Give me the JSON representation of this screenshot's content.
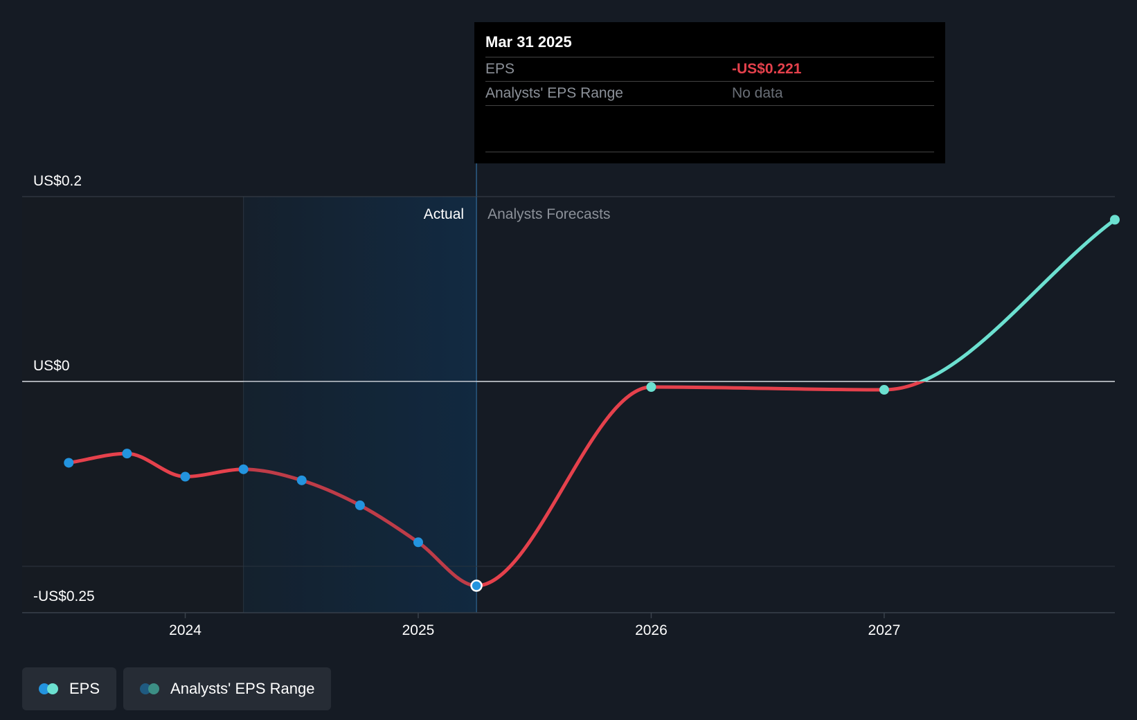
{
  "chart_data": {
    "type": "line",
    "title": "",
    "xlabel": "",
    "ylabel": "",
    "y_axis_labels": [
      "US$0.2",
      "US$0",
      "-US$0.25"
    ],
    "ylim": [
      -0.25,
      0.2
    ],
    "x_ticks": [
      {
        "label": "2024",
        "x": 2024.0
      },
      {
        "label": "2025",
        "x": 2025.0
      },
      {
        "label": "2026",
        "x": 2026.0
      },
      {
        "label": "2027",
        "x": 2027.0
      }
    ],
    "xlim": [
      2023.3,
      2027.99
    ],
    "regions": {
      "actual_label": "Actual",
      "forecast_label": "Analysts Forecasts",
      "actual_start": 2024.25,
      "divider": 2025.25
    },
    "series": [
      {
        "name": "EPS (actual)",
        "points": [
          {
            "x": 2023.5,
            "y": -0.088
          },
          {
            "x": 2023.75,
            "y": -0.078
          },
          {
            "x": 2024.0,
            "y": -0.103
          },
          {
            "x": 2024.25,
            "y": -0.095
          },
          {
            "x": 2024.5,
            "y": -0.107
          },
          {
            "x": 2024.75,
            "y": -0.134
          },
          {
            "x": 2025.0,
            "y": -0.174
          },
          {
            "x": 2025.25,
            "y": -0.221
          }
        ]
      },
      {
        "name": "EPS (forecast)",
        "points": [
          {
            "x": 2025.25,
            "y": -0.221
          },
          {
            "x": 2026.0,
            "y": -0.006
          },
          {
            "x": 2027.0,
            "y": -0.009
          },
          {
            "x": 2027.99,
            "y": 0.175
          }
        ]
      }
    ],
    "tooltip": {
      "date": "Mar 31 2025",
      "eps_label": "EPS",
      "eps_value": "-US$0.221",
      "range_label": "Analysts' EPS Range",
      "range_value": "No data"
    },
    "legend": [
      {
        "name": "EPS"
      },
      {
        "name": "Analysts' EPS Range"
      }
    ],
    "colors": {
      "background": "#151b24",
      "actual_region": "#13263a",
      "negative_line": "#e5414c",
      "positive_line": "#6ce0d0",
      "actual_dot": "#2394df",
      "forecast_dot": "#6ce0d0"
    }
  }
}
